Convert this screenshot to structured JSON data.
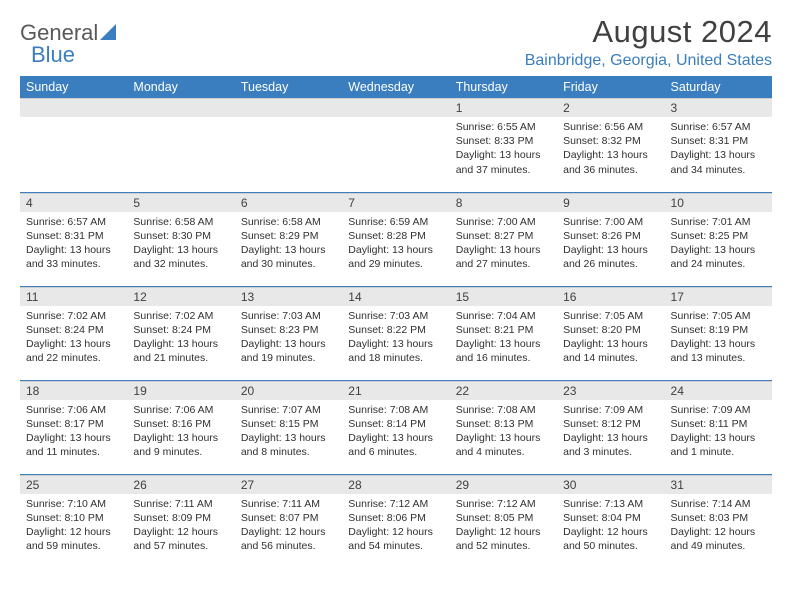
{
  "logo": {
    "text1": "General",
    "text2": "Blue"
  },
  "title": "August 2024",
  "location": "Bainbridge, Georgia, United States",
  "colors": {
    "brand_blue": "#3a7ebf",
    "header_text": "#ffffff",
    "daynum_bg": "#e8e8e8",
    "body_text": "#303030",
    "title_text": "#404040"
  },
  "day_headers": [
    "Sunday",
    "Monday",
    "Tuesday",
    "Wednesday",
    "Thursday",
    "Friday",
    "Saturday"
  ],
  "weeks": [
    [
      null,
      null,
      null,
      null,
      {
        "n": "1",
        "sr": "6:55 AM",
        "ss": "8:33 PM",
        "dl": "13 hours and 37 minutes."
      },
      {
        "n": "2",
        "sr": "6:56 AM",
        "ss": "8:32 PM",
        "dl": "13 hours and 36 minutes."
      },
      {
        "n": "3",
        "sr": "6:57 AM",
        "ss": "8:31 PM",
        "dl": "13 hours and 34 minutes."
      }
    ],
    [
      {
        "n": "4",
        "sr": "6:57 AM",
        "ss": "8:31 PM",
        "dl": "13 hours and 33 minutes."
      },
      {
        "n": "5",
        "sr": "6:58 AM",
        "ss": "8:30 PM",
        "dl": "13 hours and 32 minutes."
      },
      {
        "n": "6",
        "sr": "6:58 AM",
        "ss": "8:29 PM",
        "dl": "13 hours and 30 minutes."
      },
      {
        "n": "7",
        "sr": "6:59 AM",
        "ss": "8:28 PM",
        "dl": "13 hours and 29 minutes."
      },
      {
        "n": "8",
        "sr": "7:00 AM",
        "ss": "8:27 PM",
        "dl": "13 hours and 27 minutes."
      },
      {
        "n": "9",
        "sr": "7:00 AM",
        "ss": "8:26 PM",
        "dl": "13 hours and 26 minutes."
      },
      {
        "n": "10",
        "sr": "7:01 AM",
        "ss": "8:25 PM",
        "dl": "13 hours and 24 minutes."
      }
    ],
    [
      {
        "n": "11",
        "sr": "7:02 AM",
        "ss": "8:24 PM",
        "dl": "13 hours and 22 minutes."
      },
      {
        "n": "12",
        "sr": "7:02 AM",
        "ss": "8:24 PM",
        "dl": "13 hours and 21 minutes."
      },
      {
        "n": "13",
        "sr": "7:03 AM",
        "ss": "8:23 PM",
        "dl": "13 hours and 19 minutes."
      },
      {
        "n": "14",
        "sr": "7:03 AM",
        "ss": "8:22 PM",
        "dl": "13 hours and 18 minutes."
      },
      {
        "n": "15",
        "sr": "7:04 AM",
        "ss": "8:21 PM",
        "dl": "13 hours and 16 minutes."
      },
      {
        "n": "16",
        "sr": "7:05 AM",
        "ss": "8:20 PM",
        "dl": "13 hours and 14 minutes."
      },
      {
        "n": "17",
        "sr": "7:05 AM",
        "ss": "8:19 PM",
        "dl": "13 hours and 13 minutes."
      }
    ],
    [
      {
        "n": "18",
        "sr": "7:06 AM",
        "ss": "8:17 PM",
        "dl": "13 hours and 11 minutes."
      },
      {
        "n": "19",
        "sr": "7:06 AM",
        "ss": "8:16 PM",
        "dl": "13 hours and 9 minutes."
      },
      {
        "n": "20",
        "sr": "7:07 AM",
        "ss": "8:15 PM",
        "dl": "13 hours and 8 minutes."
      },
      {
        "n": "21",
        "sr": "7:08 AM",
        "ss": "8:14 PM",
        "dl": "13 hours and 6 minutes."
      },
      {
        "n": "22",
        "sr": "7:08 AM",
        "ss": "8:13 PM",
        "dl": "13 hours and 4 minutes."
      },
      {
        "n": "23",
        "sr": "7:09 AM",
        "ss": "8:12 PM",
        "dl": "13 hours and 3 minutes."
      },
      {
        "n": "24",
        "sr": "7:09 AM",
        "ss": "8:11 PM",
        "dl": "13 hours and 1 minute."
      }
    ],
    [
      {
        "n": "25",
        "sr": "7:10 AM",
        "ss": "8:10 PM",
        "dl": "12 hours and 59 minutes."
      },
      {
        "n": "26",
        "sr": "7:11 AM",
        "ss": "8:09 PM",
        "dl": "12 hours and 57 minutes."
      },
      {
        "n": "27",
        "sr": "7:11 AM",
        "ss": "8:07 PM",
        "dl": "12 hours and 56 minutes."
      },
      {
        "n": "28",
        "sr": "7:12 AM",
        "ss": "8:06 PM",
        "dl": "12 hours and 54 minutes."
      },
      {
        "n": "29",
        "sr": "7:12 AM",
        "ss": "8:05 PM",
        "dl": "12 hours and 52 minutes."
      },
      {
        "n": "30",
        "sr": "7:13 AM",
        "ss": "8:04 PM",
        "dl": "12 hours and 50 minutes."
      },
      {
        "n": "31",
        "sr": "7:14 AM",
        "ss": "8:03 PM",
        "dl": "12 hours and 49 minutes."
      }
    ]
  ],
  "labels": {
    "sunrise": "Sunrise:",
    "sunset": "Sunset:",
    "daylight": "Daylight:"
  }
}
